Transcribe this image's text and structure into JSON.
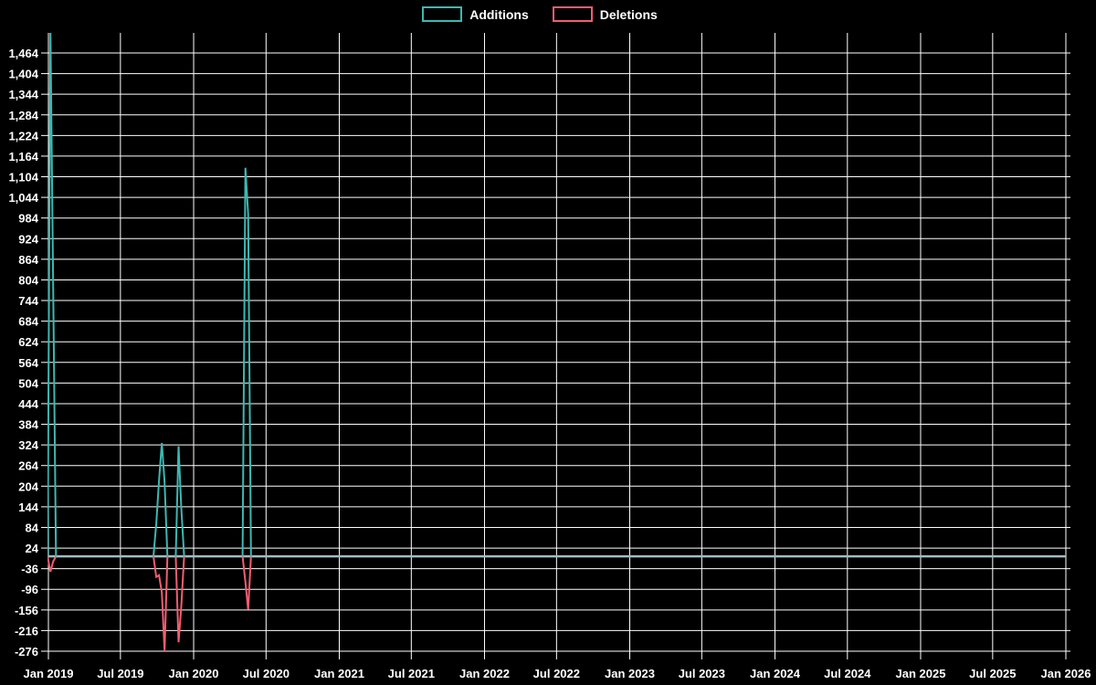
{
  "legend": {
    "additions_label": "Additions",
    "deletions_label": "Deletions"
  },
  "colors": {
    "background": "#000000",
    "grid": "#ffffff",
    "text": "#ffffff",
    "additions": "#3db8b2",
    "deletions": "#f15e72",
    "baseline_overlap": "#9fbdc3"
  },
  "chart_data": {
    "type": "line",
    "title": "",
    "legend_position": "top-center",
    "grid": true,
    "x_axis": {
      "tick_labels": [
        "Jan 2019",
        "Jul 2019",
        "Jan 2020",
        "Jul 2020",
        "Jan 2021",
        "Jul 2021",
        "Jan 2022",
        "Jul 2022",
        "Jan 2023",
        "Jul 2023",
        "Jan 2024",
        "Jul 2024",
        "Jan 2025",
        "Jul 2025",
        "Jan 2026"
      ],
      "tick_dates": [
        "2019-01-01",
        "2019-07-01",
        "2020-01-01",
        "2020-07-01",
        "2021-01-01",
        "2021-07-01",
        "2022-01-01",
        "2022-07-01",
        "2023-01-01",
        "2023-07-01",
        "2024-01-01",
        "2024-07-01",
        "2025-01-01",
        "2025-07-01",
        "2026-01-01"
      ]
    },
    "y_axis": {
      "min": -276,
      "max": 1464,
      "tick_step": 60,
      "tick_labels": [
        "1,464",
        "1,404",
        "1,344",
        "1,284",
        "1,224",
        "1,164",
        "1,104",
        "1,044",
        "984",
        "924",
        "864",
        "804",
        "744",
        "684",
        "624",
        "564",
        "504",
        "444",
        "384",
        "324",
        "264",
        "204",
        "144",
        "84",
        "24",
        "-36",
        "-96",
        "-156",
        "-216",
        "-276"
      ]
    },
    "series": [
      {
        "name": "Additions",
        "color_key": "additions",
        "points": [
          {
            "date": "2019-01-06",
            "value": 1530
          },
          {
            "date": "2019-01-13",
            "value": 790
          },
          {
            "date": "2019-09-29",
            "value": 95
          },
          {
            "date": "2019-10-06",
            "value": 220
          },
          {
            "date": "2019-10-13",
            "value": 330
          },
          {
            "date": "2019-10-20",
            "value": 215
          },
          {
            "date": "2019-11-24",
            "value": 320
          },
          {
            "date": "2019-12-01",
            "value": 140
          },
          {
            "date": "2020-05-10",
            "value": 1130
          },
          {
            "date": "2020-05-17",
            "value": 995
          }
        ]
      },
      {
        "name": "Deletions",
        "color_key": "deletions",
        "points": [
          {
            "date": "2019-01-06",
            "value": -45
          },
          {
            "date": "2019-01-13",
            "value": -15
          },
          {
            "date": "2019-09-29",
            "value": -60
          },
          {
            "date": "2019-10-06",
            "value": -55
          },
          {
            "date": "2019-10-13",
            "value": -105
          },
          {
            "date": "2019-10-20",
            "value": -276
          },
          {
            "date": "2019-11-24",
            "value": -250
          },
          {
            "date": "2019-12-01",
            "value": -145
          },
          {
            "date": "2020-05-10",
            "value": -75
          },
          {
            "date": "2020-05-17",
            "value": -155
          }
        ]
      }
    ],
    "zero_fill": {
      "week_start": "2018-12-30",
      "week_end": "2026-01-04",
      "interval_days": 7
    },
    "note": "All weeks not listed in points have value 0 for both series; the 2019-01-06 Additions spike is clipped at the top of the plot (visible axis max ~1,524)."
  }
}
